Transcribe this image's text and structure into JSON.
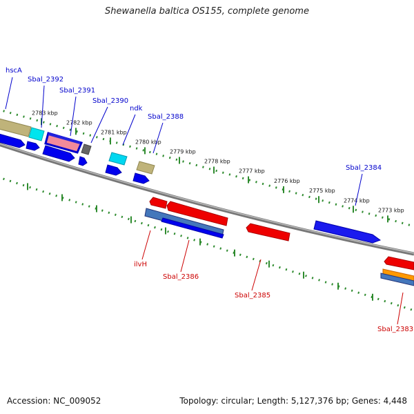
{
  "title": "Shewanella baltica OS155, complete genome",
  "footer": {
    "accession": "Accession: NC_009052",
    "summary": "Topology: circular; Length: 5,127,376 bp; Genes: 4,448"
  },
  "colors": {
    "forward_label": "#0000cc",
    "reverse_label": "#cc0000",
    "backbone": "#8a8a8a",
    "tick": "#2e8b2e"
  },
  "scale_labels": [
    "2783 kbp",
    "2782 kbp",
    "2781 kbp",
    "2780 kbp",
    "2779 kbp",
    "2778 kbp",
    "2777 kbp",
    "2776 kbp",
    "2775 kbp",
    "2774 kbp",
    "2773 kbp"
  ],
  "gene_labels": {
    "forward": [
      "hscA",
      "Sbal_2392",
      "Sbal_2391",
      "Sbal_2390",
      "ndk",
      "Sbal_2388",
      "Sbal_2384"
    ],
    "reverse": [
      "ilvH",
      "Sbal_2386",
      "Sbal_2385",
      "Sbal_2383"
    ]
  }
}
